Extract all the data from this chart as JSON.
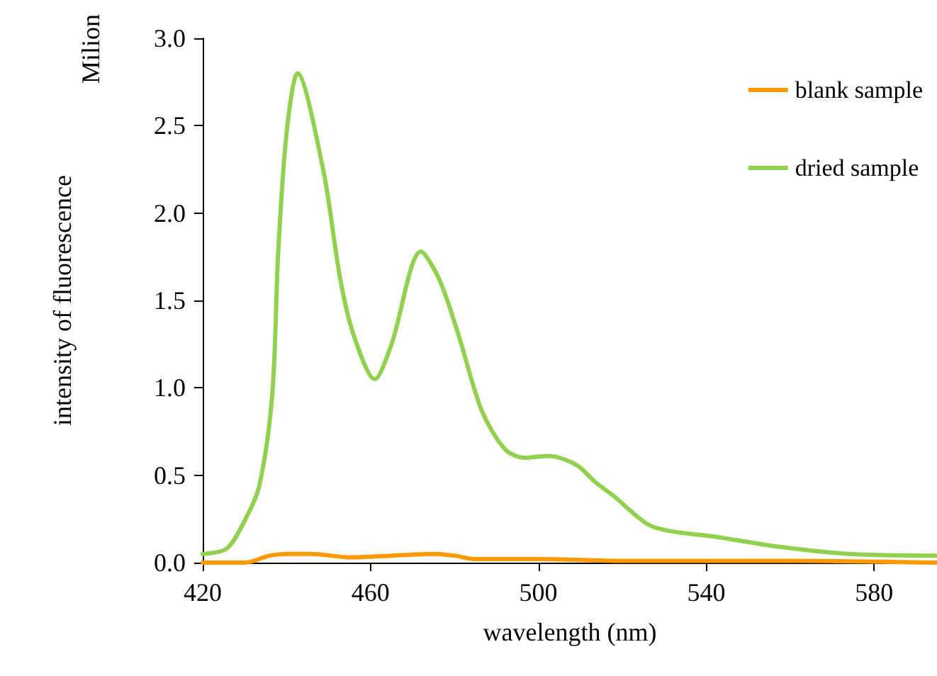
{
  "chart_data": {
    "type": "line",
    "xlabel": "wavelength (nm)",
    "ylabel": "intensity of fluorescence",
    "annotations": [
      "Milion"
    ],
    "xlim": [
      420,
      595
    ],
    "xticks": [
      420,
      460,
      500,
      540,
      580
    ],
    "ylim": [
      0,
      3
    ],
    "yticks": [
      {
        "value": 0,
        "label": "0.0"
      },
      {
        "value": 0.5,
        "label": "0.5"
      },
      {
        "value": 1,
        "label": "1.0"
      },
      {
        "value": 1.5,
        "label": "1.5"
      },
      {
        "value": 2,
        "label": "2.0"
      },
      {
        "value": 2.5,
        "label": "2.5"
      },
      {
        "value": 3,
        "label": "3.0"
      }
    ],
    "grid": false,
    "legend": "top right",
    "marker": "none",
    "line_style": "solid",
    "series": [
      {
        "name": "blank sample",
        "color": "#ff9900",
        "x": [
          420,
          430,
          436,
          440,
          446,
          455,
          465,
          475,
          480,
          485,
          500,
          520,
          540,
          560,
          595
        ],
        "values": [
          0.0,
          0.0,
          0.04,
          0.05,
          0.05,
          0.03,
          0.04,
          0.05,
          0.04,
          0.02,
          0.02,
          0.01,
          0.01,
          0.01,
          0.0
        ]
      },
      {
        "name": "dried sample",
        "color": "#92d050",
        "x": [
          420,
          425.7,
          430,
          433.5,
          436.6,
          438,
          440,
          442.6,
          448.7,
          452.8,
          456,
          461,
          465,
          472,
          476.4,
          481,
          486.5,
          492,
          496.7,
          502.4,
          509,
          513.6,
          518,
          526,
          531.5,
          541.6,
          557.5,
          574,
          595
        ],
        "values": [
          0.05,
          0.08,
          0.24,
          0.44,
          0.97,
          1.78,
          2.46,
          2.8,
          2.25,
          1.62,
          1.3,
          1.05,
          1.25,
          1.78,
          1.62,
          1.3,
          0.87,
          0.65,
          0.6,
          0.61,
          0.56,
          0.46,
          0.38,
          0.22,
          0.18,
          0.15,
          0.09,
          0.05,
          0.04
        ]
      }
    ]
  }
}
